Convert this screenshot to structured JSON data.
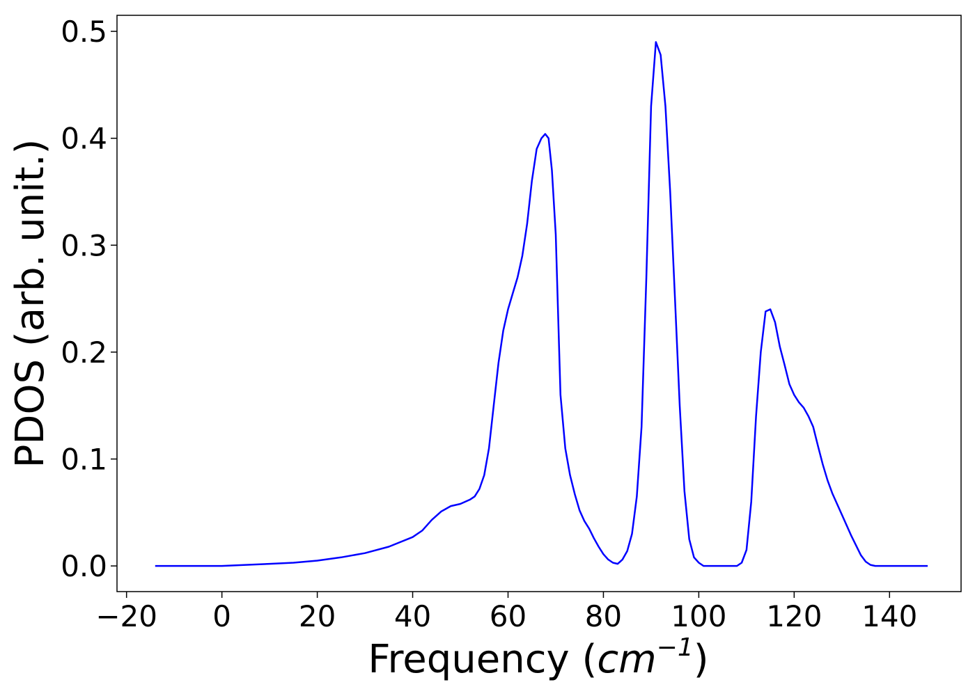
{
  "chart_data": {
    "type": "line",
    "xlabel": "Frequency (",
    "xlabel_unit": "cm",
    "xlabel_exp": "−1",
    "xlabel_close": ")",
    "ylabel": "PDOS (arb. unit.)",
    "xlim": [
      -22,
      155
    ],
    "ylim": [
      -0.024,
      0.515
    ],
    "x_ticks": [
      -20,
      0,
      20,
      40,
      60,
      80,
      100,
      120,
      140
    ],
    "x_tick_labels": [
      "−20",
      "0",
      "20",
      "40",
      "60",
      "80",
      "100",
      "120",
      "140"
    ],
    "y_ticks": [
      0.0,
      0.1,
      0.2,
      0.3,
      0.4,
      0.5
    ],
    "y_tick_labels": [
      "0.0",
      "0.1",
      "0.2",
      "0.3",
      "0.4",
      "0.5"
    ],
    "grid": false,
    "series": [
      {
        "color": "#0000ff",
        "x": [
          -14,
          0,
          5,
          10,
          15,
          20,
          25,
          30,
          35,
          40,
          42,
          44,
          46,
          48,
          50,
          52,
          53,
          54,
          55,
          56,
          57,
          58,
          59,
          60,
          61,
          62,
          63,
          64,
          65,
          66,
          67,
          67.8,
          68.5,
          69.2,
          70,
          71,
          72,
          73,
          74,
          75,
          76,
          77,
          78,
          79,
          80,
          81,
          82,
          83,
          84,
          85,
          86,
          87,
          88,
          89,
          90,
          91,
          92,
          93,
          94,
          95,
          96,
          97,
          98,
          99,
          100,
          101,
          104,
          108,
          109,
          110,
          111,
          112,
          113,
          114,
          115,
          116,
          117,
          118,
          119,
          120,
          121,
          122,
          123,
          124,
          125,
          126,
          127,
          128,
          130,
          132,
          134,
          135,
          136,
          137,
          140,
          148
        ],
        "y": [
          0.0,
          0.0,
          0.001,
          0.002,
          0.003,
          0.005,
          0.008,
          0.012,
          0.018,
          0.027,
          0.033,
          0.043,
          0.051,
          0.056,
          0.058,
          0.062,
          0.065,
          0.072,
          0.085,
          0.11,
          0.15,
          0.19,
          0.22,
          0.24,
          0.255,
          0.27,
          0.29,
          0.32,
          0.36,
          0.39,
          0.4,
          0.404,
          0.4,
          0.37,
          0.31,
          0.16,
          0.11,
          0.085,
          0.067,
          0.052,
          0.042,
          0.035,
          0.026,
          0.018,
          0.011,
          0.006,
          0.003,
          0.002,
          0.006,
          0.014,
          0.03,
          0.065,
          0.13,
          0.27,
          0.43,
          0.49,
          0.478,
          0.43,
          0.35,
          0.25,
          0.15,
          0.07,
          0.025,
          0.008,
          0.003,
          0.0,
          0.0,
          0.0,
          0.003,
          0.015,
          0.06,
          0.14,
          0.2,
          0.238,
          0.24,
          0.228,
          0.205,
          0.188,
          0.17,
          0.16,
          0.153,
          0.148,
          0.14,
          0.13,
          0.112,
          0.095,
          0.08,
          0.068,
          0.048,
          0.028,
          0.01,
          0.004,
          0.001,
          0.0,
          0.0,
          0.0
        ]
      }
    ]
  }
}
